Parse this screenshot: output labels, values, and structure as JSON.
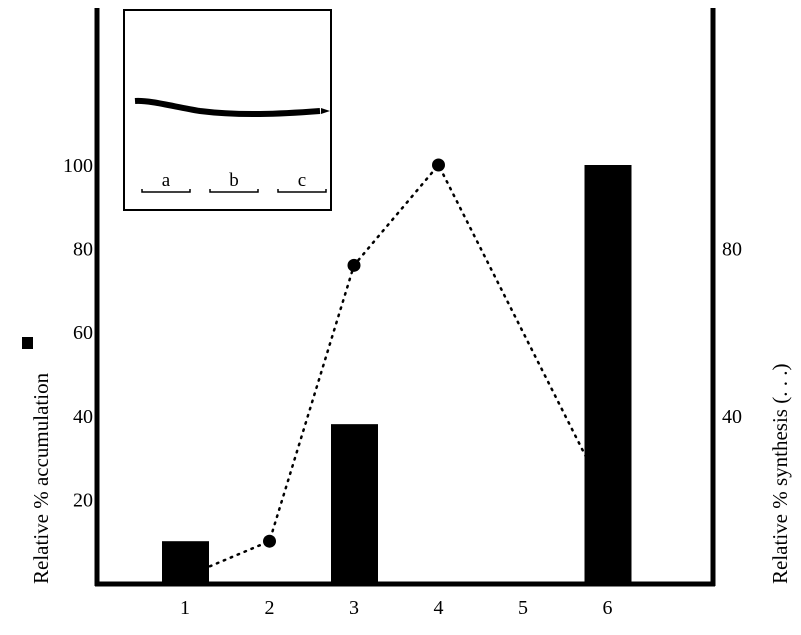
{
  "chart_data": {
    "type": "bar+line",
    "categories": [
      "1",
      "2",
      "3",
      "4",
      "5",
      "6"
    ],
    "series": [
      {
        "kind": "bar",
        "axis": "left",
        "x": [
          1,
          3,
          6
        ],
        "values": [
          10,
          38,
          100
        ]
      },
      {
        "kind": "line",
        "style": "dotted",
        "markers": "circle",
        "axis": "right",
        "x": [
          1,
          2,
          3,
          4,
          6
        ],
        "values": [
          4,
          10,
          76,
          100,
          20
        ],
        "marked": [
          false,
          true,
          true,
          true,
          false
        ]
      }
    ],
    "ylabel_left": "Relative % accumulation",
    "ylabel_right": "Relative % synthesis (. . .)",
    "left_ticks": [
      "20",
      "40",
      "60",
      "80",
      "100"
    ],
    "right_ticks": [
      "40",
      "80"
    ],
    "ylim": [
      0,
      110
    ],
    "xlim": [
      0,
      7
    ],
    "grid": false,
    "colors": {
      "bar": "#000000",
      "line": "#000000"
    },
    "inset": {
      "lane_labels": [
        "a",
        "b",
        "c"
      ]
    }
  }
}
